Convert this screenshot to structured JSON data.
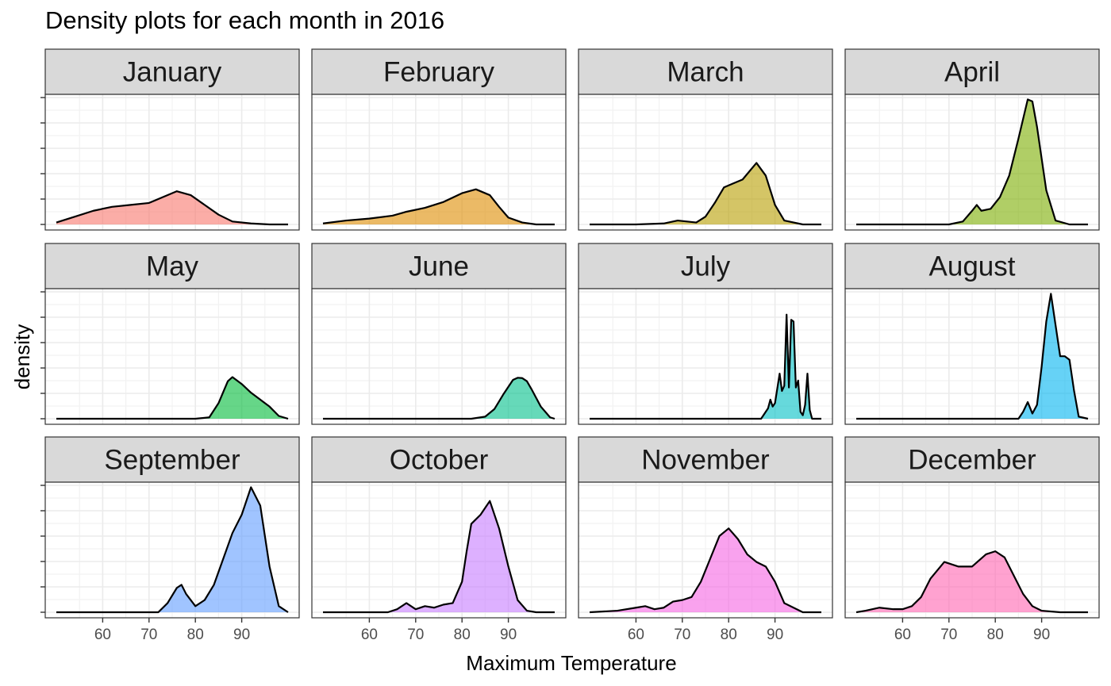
{
  "title": "Density plots for each month in 2016",
  "chart_data": {
    "type": "area",
    "title": "Density plots for each month in 2016",
    "xlabel": "Maximum Temperature",
    "ylabel": "density",
    "xlim": [
      50,
      100
    ],
    "x_ticks": [
      60,
      70,
      80,
      90
    ],
    "y_tick_labels_shown": false,
    "grid": true,
    "facets": {
      "rows": 3,
      "cols": 4
    },
    "series": [
      {
        "name": "January",
        "color": "#F8766D",
        "x": [
          50,
          54,
          58,
          62,
          66,
          70,
          73,
          76,
          79,
          82,
          85,
          88,
          92,
          96,
          100
        ],
        "density": [
          0.002,
          0.008,
          0.014,
          0.018,
          0.02,
          0.022,
          0.028,
          0.034,
          0.03,
          0.02,
          0.01,
          0.003,
          0.001,
          0,
          0
        ]
      },
      {
        "name": "February",
        "color": "#DE8C00",
        "x": [
          50,
          55,
          60,
          65,
          68,
          72,
          76,
          80,
          83,
          86,
          88,
          90,
          93,
          96,
          100
        ],
        "density": [
          0.001,
          0.004,
          0.006,
          0.009,
          0.013,
          0.017,
          0.023,
          0.032,
          0.036,
          0.03,
          0.018,
          0.007,
          0.002,
          0,
          0
        ]
      },
      {
        "name": "March",
        "color": "#B79F00",
        "x": [
          50,
          60,
          66,
          69,
          71,
          73,
          75,
          77,
          79,
          81,
          83,
          86,
          88,
          90,
          92,
          96,
          100
        ],
        "density": [
          0,
          0,
          0.001,
          0.004,
          0.003,
          0.002,
          0.008,
          0.022,
          0.038,
          0.042,
          0.046,
          0.063,
          0.05,
          0.02,
          0.004,
          0,
          0
        ]
      },
      {
        "name": "April",
        "color": "#7CAE00",
        "x": [
          50,
          70,
          73,
          75,
          76,
          77,
          79,
          81,
          83,
          85,
          87,
          88,
          89,
          91,
          93,
          96,
          100
        ],
        "density": [
          0,
          0,
          0.003,
          0.014,
          0.02,
          0.014,
          0.016,
          0.028,
          0.05,
          0.088,
          0.128,
          0.126,
          0.1,
          0.035,
          0.004,
          0,
          0
        ]
      },
      {
        "name": "May",
        "color": "#00BA38",
        "x": [
          50,
          80,
          83,
          85,
          87,
          88,
          90,
          92,
          94,
          96,
          98,
          100
        ],
        "density": [
          0,
          0,
          0.004,
          0.045,
          0.108,
          0.12,
          0.1,
          0.075,
          0.055,
          0.035,
          0.008,
          0
        ]
      },
      {
        "name": "June",
        "color": "#00C08B",
        "x": [
          50,
          82,
          85,
          87,
          89,
          91,
          92,
          93,
          94,
          95,
          97,
          99,
          100
        ],
        "density": [
          0,
          0,
          0.006,
          0.028,
          0.072,
          0.112,
          0.118,
          0.117,
          0.108,
          0.085,
          0.035,
          0.004,
          0
        ]
      },
      {
        "name": "July",
        "color": "#00BFC4",
        "x": [
          50,
          87,
          88.5,
          89,
          89.5,
          90,
          91,
          91.5,
          92,
          92.5,
          93,
          93.5,
          94,
          94.5,
          95,
          95.5,
          96,
          96.5,
          97,
          97.5,
          98,
          100
        ],
        "density": [
          0,
          0,
          0.03,
          0.055,
          0.035,
          0.045,
          0.13,
          0.08,
          0.095,
          0.3,
          0.09,
          0.285,
          0.28,
          0.09,
          0.11,
          0.02,
          0.01,
          0.04,
          0.13,
          0.025,
          0,
          0
        ]
      },
      {
        "name": "August",
        "color": "#00B4F0",
        "x": [
          50,
          85,
          86,
          87,
          88,
          89,
          90,
          91,
          92,
          93,
          94,
          95,
          96,
          97,
          98,
          100
        ],
        "density": [
          0,
          0,
          0.02,
          0.048,
          0.015,
          0.04,
          0.15,
          0.28,
          0.36,
          0.27,
          0.18,
          0.18,
          0.17,
          0.08,
          0.006,
          0
        ]
      },
      {
        "name": "September",
        "color": "#619CFF",
        "x": [
          50,
          72,
          74,
          76,
          77,
          78,
          80,
          82,
          84,
          86,
          88,
          90,
          92,
          94,
          96,
          98,
          100
        ],
        "density": [
          0,
          0,
          0.006,
          0.016,
          0.018,
          0.012,
          0.004,
          0.008,
          0.018,
          0.035,
          0.052,
          0.064,
          0.082,
          0.07,
          0.03,
          0.004,
          0
        ]
      },
      {
        "name": "October",
        "color": "#C77CFF",
        "x": [
          50,
          64,
          66,
          68,
          70,
          72,
          74,
          76,
          78,
          80,
          81,
          82,
          84,
          86,
          88,
          90,
          92,
          94,
          96,
          100
        ],
        "density": [
          0,
          0,
          0.002,
          0.006,
          0.002,
          0.004,
          0.003,
          0.005,
          0.006,
          0.02,
          0.04,
          0.058,
          0.064,
          0.073,
          0.055,
          0.03,
          0.008,
          0.001,
          0,
          0
        ]
      },
      {
        "name": "November",
        "color": "#F564E3",
        "x": [
          50,
          56,
          60,
          62,
          64,
          66,
          68,
          70,
          72,
          74,
          76,
          78,
          80,
          82,
          84,
          86,
          88,
          90,
          92,
          96,
          100
        ],
        "density": [
          0,
          0.001,
          0.003,
          0.004,
          0.002,
          0.003,
          0.007,
          0.008,
          0.01,
          0.02,
          0.035,
          0.05,
          0.055,
          0.048,
          0.038,
          0.033,
          0.03,
          0.02,
          0.006,
          0,
          0
        ]
      },
      {
        "name": "December",
        "color": "#FF64B0",
        "x": [
          50,
          52,
          55,
          58,
          60,
          62,
          64,
          66,
          69,
          72,
          75,
          78,
          80,
          82,
          84,
          86,
          88,
          90,
          94,
          100
        ],
        "density": [
          0,
          0.001,
          0.003,
          0.002,
          0.002,
          0.004,
          0.01,
          0.022,
          0.033,
          0.03,
          0.03,
          0.038,
          0.04,
          0.036,
          0.024,
          0.012,
          0.004,
          0.001,
          0,
          0
        ]
      }
    ]
  }
}
